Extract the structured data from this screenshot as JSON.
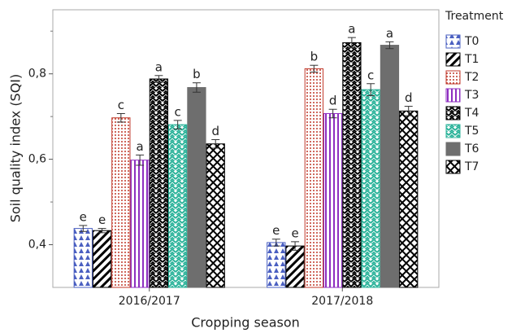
{
  "chart_data": {
    "type": "bar",
    "xlabel": "Cropping season",
    "ylabel": "Soil quality index (SQI)",
    "legend_title": "Treatment",
    "categories": [
      "2016/2017",
      "2017/2018"
    ],
    "ylim": [
      0.3,
      0.95
    ],
    "yticks": [
      {
        "value": 0.4,
        "label": "0,4"
      },
      {
        "value": 0.6,
        "label": "0,6"
      },
      {
        "value": 0.8,
        "label": "0,8"
      }
    ],
    "minor_yticks": [
      0.5,
      0.7,
      0.9
    ],
    "series": [
      {
        "name": "T0",
        "color": "#4a5fc1",
        "pattern": "triangles",
        "values": [
          0.438,
          0.405
        ],
        "errors": [
          0.007,
          0.008
        ],
        "letters": [
          "e",
          "e"
        ]
      },
      {
        "name": "T1",
        "color": "#000000",
        "pattern": "diagonal",
        "values": [
          0.433,
          0.397
        ],
        "errors": [
          0.005,
          0.01
        ],
        "letters": [
          "e",
          "e"
        ]
      },
      {
        "name": "T2",
        "color": "#c0392b",
        "pattern": "dots",
        "values": [
          0.697,
          0.812
        ],
        "errors": [
          0.01,
          0.008
        ],
        "letters": [
          "c",
          "b"
        ]
      },
      {
        "name": "T3",
        "color": "#8e2fc0",
        "pattern": "vertical",
        "values": [
          0.598,
          0.707
        ],
        "errors": [
          0.012,
          0.01
        ],
        "letters": [
          "a",
          "d"
        ]
      },
      {
        "name": "T4",
        "color": "#000000",
        "pattern": "zigzag",
        "values": [
          0.788,
          0.873
        ],
        "errors": [
          0.008,
          0.012
        ],
        "letters": [
          "a",
          "a"
        ]
      },
      {
        "name": "T5",
        "color": "#2bb39a",
        "pattern": "zigzag",
        "values": [
          0.681,
          0.763
        ],
        "errors": [
          0.01,
          0.014
        ],
        "letters": [
          "c",
          "c"
        ]
      },
      {
        "name": "T6",
        "color": "#6e6e6e",
        "pattern": "solid",
        "values": [
          0.768,
          0.867
        ],
        "errors": [
          0.011,
          0.008
        ],
        "letters": [
          "b",
          "a"
        ]
      },
      {
        "name": "T7",
        "color": "#000000",
        "pattern": "crosshatch",
        "values": [
          0.636,
          0.713
        ],
        "errors": [
          0.01,
          0.011
        ],
        "letters": [
          "d",
          "d"
        ]
      }
    ]
  }
}
